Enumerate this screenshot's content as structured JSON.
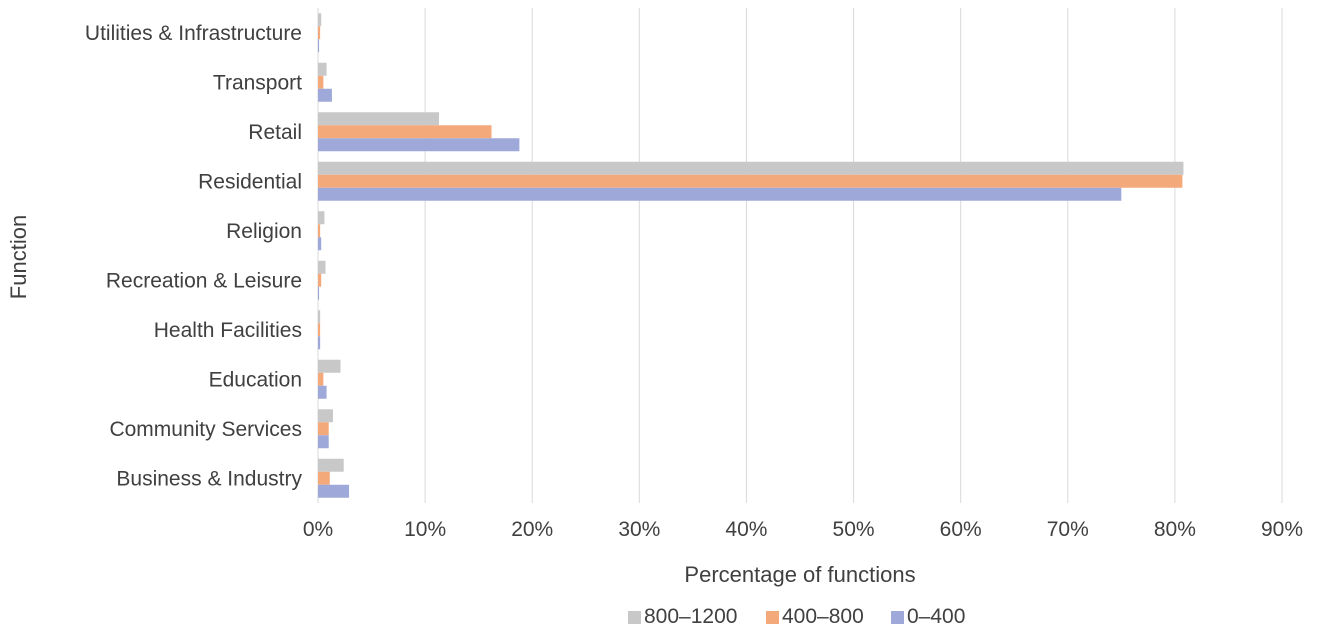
{
  "chart_data": {
    "type": "bar",
    "orientation": "horizontal",
    "title": "",
    "xlabel": "Percentage of functions",
    "ylabel": "Function",
    "xlim": [
      0,
      90
    ],
    "x_ticks": [
      "0%",
      "10%",
      "20%",
      "30%",
      "40%",
      "50%",
      "60%",
      "70%",
      "80%",
      "90%"
    ],
    "grid": "vertical",
    "legend_position": "bottom",
    "categories": [
      "Business & Industry",
      "Community Services",
      "Education",
      "Health Facilities",
      "Recreation & Leisure",
      "Religion",
      "Residential",
      "Retail",
      "Transport",
      "Utilities & Infrastructure"
    ],
    "series": [
      {
        "name": "800–1200",
        "color": "#c8c8c8",
        "values": [
          2.4,
          1.4,
          2.1,
          0.2,
          0.7,
          0.6,
          80.8,
          11.3,
          0.8,
          0.3
        ]
      },
      {
        "name": "400–800",
        "color": "#f4a97a",
        "values": [
          1.1,
          1.0,
          0.5,
          0.2,
          0.3,
          0.2,
          80.7,
          16.2,
          0.5,
          0.2
        ]
      },
      {
        "name": "0–400",
        "color": "#9fa9d9",
        "values": [
          2.9,
          1.0,
          0.8,
          0.2,
          0.1,
          0.3,
          75.0,
          18.8,
          1.3,
          0.1
        ]
      }
    ]
  }
}
